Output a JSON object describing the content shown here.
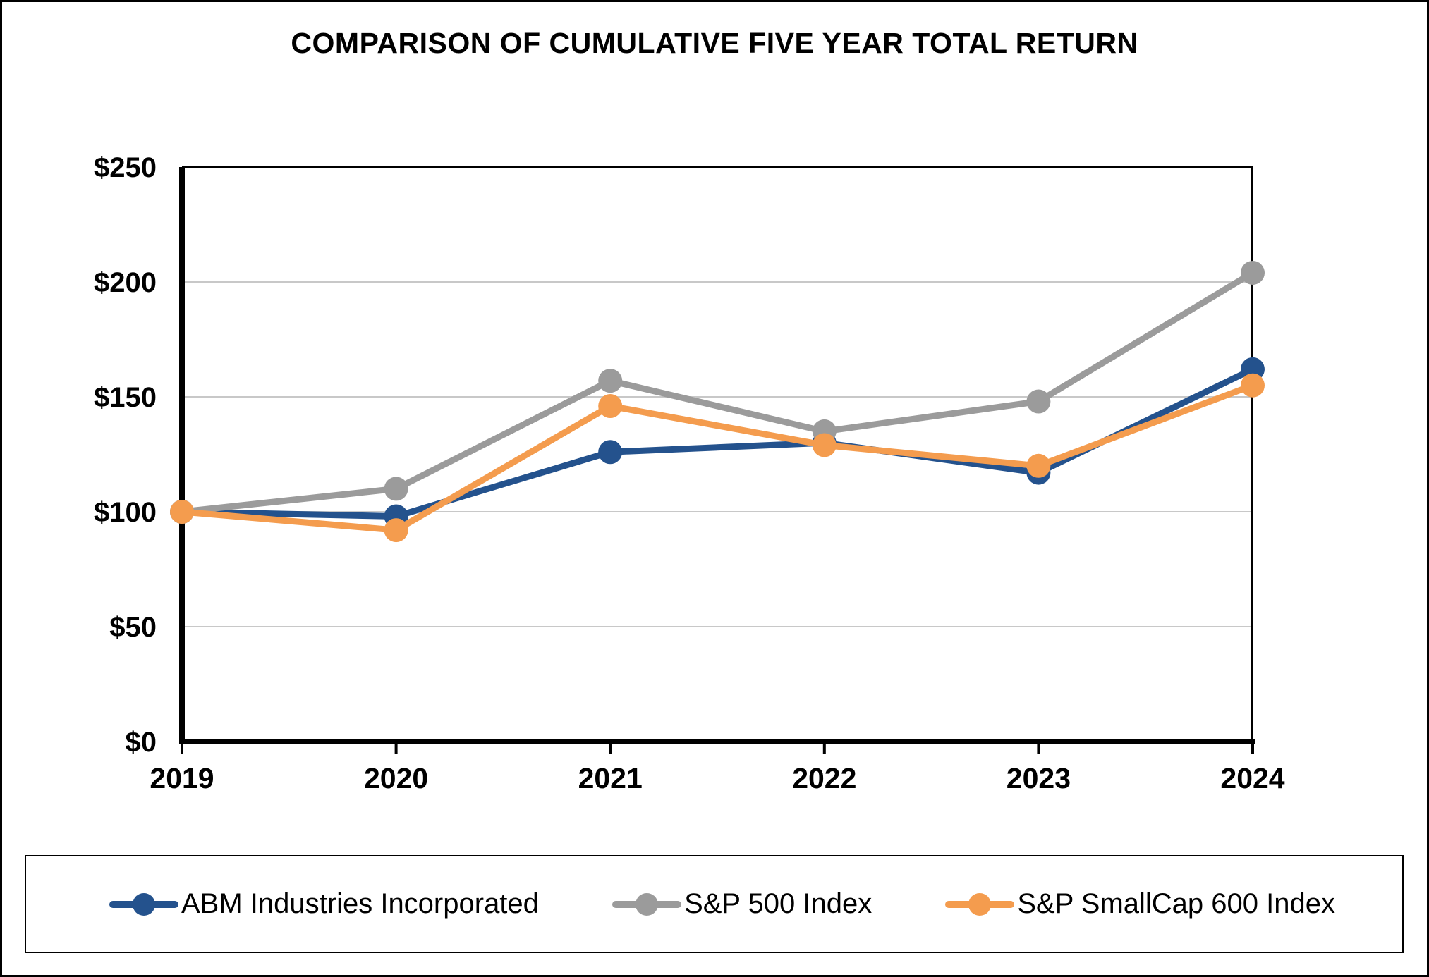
{
  "title": "COMPARISON OF CUMULATIVE FIVE YEAR TOTAL RETURN",
  "colors": {
    "axis": "#000000",
    "gridline": "#c8c8c8",
    "background": "#ffffff"
  },
  "chart_data": {
    "type": "line",
    "title": "COMPARISON OF CUMULATIVE FIVE YEAR TOTAL RETURN",
    "xlabel": "",
    "ylabel": "",
    "categories": [
      "2019",
      "2020",
      "2021",
      "2022",
      "2023",
      "2024"
    ],
    "series": [
      {
        "name": "ABM Industries Incorporated",
        "color": "#24528d",
        "values": [
          100,
          98,
          126,
          130,
          117,
          162
        ]
      },
      {
        "name": "S&P 500 Index",
        "color": "#9b9b9b",
        "values": [
          100,
          110,
          157,
          135,
          148,
          204
        ]
      },
      {
        "name": "S&P SmallCap 600 Index",
        "color": "#f49c4e",
        "values": [
          100,
          92,
          146,
          129,
          120,
          155
        ]
      }
    ],
    "ylim": [
      0,
      250
    ],
    "ytick_step": 50,
    "ytick_labels": [
      "$0",
      "$50",
      "$100",
      "$150",
      "$200",
      "$250"
    ],
    "xtick_labels": [
      "2019",
      "2020",
      "2021",
      "2022",
      "2023",
      "2024"
    ],
    "grid": true,
    "legend_position": "bottom"
  }
}
